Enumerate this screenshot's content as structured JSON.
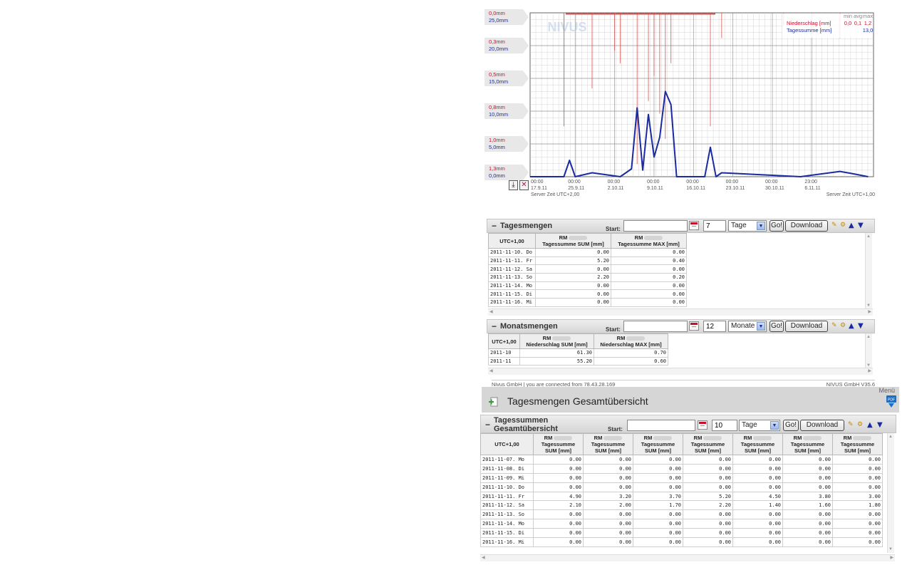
{
  "chart": {
    "left_scale": [
      {
        "red": "0,0mm",
        "blue": "25,0mm"
      },
      {
        "red": "0,3mm",
        "blue": "20,0mm"
      },
      {
        "red": "0,5mm",
        "blue": "15,0mm"
      },
      {
        "red": "0,8mm",
        "blue": "10,0mm"
      },
      {
        "red": "1,0mm",
        "blue": "5,0mm"
      },
      {
        "red": "1,3mm",
        "blue": "0,0mm"
      }
    ],
    "x_ticks": [
      {
        "time": "00:00",
        "date": "17.9.11"
      },
      {
        "time": "00:00",
        "date": "25.9.11"
      },
      {
        "time": "00:00",
        "date": "2.10.11"
      },
      {
        "time": "00:00",
        "date": "9.10.11"
      },
      {
        "time": "00:00",
        "date": "16.10.11"
      },
      {
        "time": "00:00",
        "date": "23.10.11"
      },
      {
        "time": "00:00",
        "date": "30.10.11"
      },
      {
        "time": "23:00",
        "date": "6.11.11"
      }
    ],
    "server_time_left": "Server Zeit UTC+2,00",
    "server_time_right": "Server Zeit UTC+1,00",
    "watermark": "NIVUS",
    "legend": {
      "headers": [
        "min",
        "avg",
        "max"
      ],
      "rows": [
        {
          "name": "Niederschlag [mm]",
          "min": "0,0",
          "avg": "0,1",
          "max": "1,2",
          "color": "#c8102e"
        },
        {
          "name": "Tagessumme [mm]",
          "min": "",
          "avg": "",
          "max": "13,0",
          "color": "#1a2aa0"
        }
      ]
    },
    "colors": {
      "precip": "#d9534f",
      "daily": "#1a2aa0",
      "grid": "#cccccc",
      "grid_major": "#999999"
    }
  },
  "chart_data": [
    {
      "type": "line",
      "title": "",
      "x_ticks": [
        "17.9.11",
        "25.9.11",
        "2.10.11",
        "9.10.11",
        "16.10.11",
        "23.10.11",
        "30.10.11",
        "6.11.11"
      ],
      "series": [
        {
          "name": "Tagessumme [mm]",
          "axis": "right-scale 0-25 mm",
          "points": [
            [
              "2011-09-17",
              0
            ],
            [
              "2011-09-23",
              0
            ],
            [
              "2011-09-24",
              2.5
            ],
            [
              "2011-09-25",
              0
            ],
            [
              "2011-09-28",
              0.6
            ],
            [
              "2011-10-03",
              0
            ],
            [
              "2011-10-05",
              1.2
            ],
            [
              "2011-10-06",
              10.5
            ],
            [
              "2011-10-07",
              1
            ],
            [
              "2011-10-08",
              9.5
            ],
            [
              "2011-10-09",
              3
            ],
            [
              "2011-10-10",
              6
            ],
            [
              "2011-10-11",
              13
            ],
            [
              "2011-10-12",
              11
            ],
            [
              "2011-10-13",
              0
            ],
            [
              "2011-10-18",
              0
            ],
            [
              "2011-10-19",
              4.5
            ],
            [
              "2011-10-20",
              0
            ],
            [
              "2011-10-21",
              0.6
            ],
            [
              "2011-11-04",
              0
            ],
            [
              "2011-11-11",
              0.8
            ],
            [
              "2011-11-13",
              0.5
            ],
            [
              "2011-11-16",
              0
            ]
          ]
        },
        {
          "name": "Niederschlag [mm]",
          "axis": "inverted 0-1.3 mm",
          "spikes": [
            [
              "2011-09-23",
              0.9
            ],
            [
              "2011-09-28",
              0.6
            ],
            [
              "2011-10-02",
              0.3
            ],
            [
              "2011-10-03",
              0.4
            ],
            [
              "2011-10-06",
              1.2
            ],
            [
              "2011-10-08",
              0.7
            ],
            [
              "2011-10-09",
              0.5
            ],
            [
              "2011-10-10",
              0.8
            ],
            [
              "2011-10-11",
              1.0
            ],
            [
              "2011-10-12",
              0.4
            ],
            [
              "2011-10-19",
              0.9
            ],
            [
              "2011-10-21",
              0.2
            ],
            [
              "2011-11-01",
              0.1
            ],
            [
              "2011-11-11",
              0.2
            ]
          ]
        }
      ],
      "ylabel": "",
      "xlabel": ""
    }
  ],
  "tagesmengen": {
    "title": "Tagesmengen",
    "start_label": "Start:",
    "start_value": "",
    "count": "7",
    "unit": "Tage",
    "go_label": "Go!",
    "download_label": "Download",
    "columns": [
      {
        "top": "",
        "bottom": "UTC+1,00"
      },
      {
        "top": "RM",
        "bottom": "Tagessumme SUM [mm]"
      },
      {
        "top": "RM",
        "bottom": "Tagessumme MAX [mm]"
      }
    ],
    "rows": [
      [
        "2011-11-10. Do",
        "0.00",
        "0.00"
      ],
      [
        "2011-11-11. Fr",
        "5.20",
        "0.40"
      ],
      [
        "2011-11-12. Sa",
        "0.00",
        "0.00"
      ],
      [
        "2011-11-13. So",
        "2.20",
        "0.20"
      ],
      [
        "2011-11-14. Mo",
        "0.00",
        "0.00"
      ],
      [
        "2011-11-15. Di",
        "0.00",
        "0.00"
      ],
      [
        "2011-11-16. Mi",
        "0.00",
        "0.00"
      ]
    ]
  },
  "monatsmengen": {
    "title": "Monatsmengen",
    "start_label": "Start:",
    "start_value": "",
    "count": "12",
    "unit": "Monate",
    "go_label": "Go!",
    "download_label": "Download",
    "columns": [
      {
        "top": "",
        "bottom": "UTC+1,00"
      },
      {
        "top": "RM",
        "bottom": "Niederschlag SUM [mm]"
      },
      {
        "top": "RM",
        "bottom": "Niederschlag MAX [mm]"
      }
    ],
    "rows": [
      [
        "2011-10",
        "61.30",
        "0.70"
      ],
      [
        "2011-11",
        "55.20",
        "0.60"
      ]
    ]
  },
  "footer": {
    "left": "Nivus GmbH | you are connected from 78.43.28.169",
    "right": "NIVUS GmbH V35.6"
  },
  "overview": {
    "menu_label": "Menü",
    "page_title": "Tagesmengen Gesamtübersicht",
    "title_line1": "Tagessummen",
    "title_line2": "Gesamtübersicht",
    "start_label": "Start:",
    "start_value": "",
    "count": "10",
    "unit": "Tage",
    "go_label": "Go!",
    "download_label": "Download",
    "columns": [
      {
        "top": "",
        "bottom": "UTC+1,00"
      },
      {
        "top": "RM",
        "bottom": "Tagessumme SUM [mm]"
      },
      {
        "top": "RM",
        "bottom": "Tagessumme SUM [mm]"
      },
      {
        "top": "RM",
        "bottom": "Tagessumme SUM [mm]"
      },
      {
        "top": "RM",
        "bottom": "Tagessumme SUM [mm]"
      },
      {
        "top": "RM",
        "bottom": "Tagessumme SUM [mm]"
      },
      {
        "top": "RM",
        "bottom": "Tagessumme SUM [mm]"
      },
      {
        "top": "RM",
        "bottom": "Tagessumme SUM [mm]"
      }
    ],
    "rows": [
      [
        "2011-11-07. Mo",
        "0.00",
        "0.00",
        "0.00",
        "0.00",
        "0.00",
        "0.00",
        "0.00"
      ],
      [
        "2011-11-08. Di",
        "0.00",
        "0.00",
        "0.00",
        "0.00",
        "0.00",
        "0.00",
        "0.00"
      ],
      [
        "2011-11-09. Mi",
        "0.00",
        "0.00",
        "0.00",
        "0.00",
        "0.00",
        "0.00",
        "0.00"
      ],
      [
        "2011-11-10. Do",
        "0.00",
        "0.00",
        "0.00",
        "0.00",
        "0.00",
        "0.00",
        "0.00"
      ],
      [
        "2011-11-11. Fr",
        "4.90",
        "3.20",
        "3.70",
        "5.20",
        "4.50",
        "3.80",
        "3.00"
      ],
      [
        "2011-11-12. Sa",
        "2.10",
        "2.00",
        "1.70",
        "2.20",
        "1.40",
        "1.60",
        "1.80"
      ],
      [
        "2011-11-13. So",
        "0.00",
        "0.00",
        "0.00",
        "0.00",
        "0.00",
        "0.00",
        "0.00"
      ],
      [
        "2011-11-14. Mo",
        "0.00",
        "0.00",
        "0.00",
        "0.00",
        "0.00",
        "0.00",
        "0.00"
      ],
      [
        "2011-11-15. Di",
        "0.00",
        "0.00",
        "0.00",
        "0.00",
        "0.00",
        "0.00",
        "0.00"
      ],
      [
        "2011-11-16. Mi",
        "0.00",
        "0.00",
        "0.00",
        "0.00",
        "0.00",
        "0.00",
        "0.00"
      ]
    ]
  }
}
